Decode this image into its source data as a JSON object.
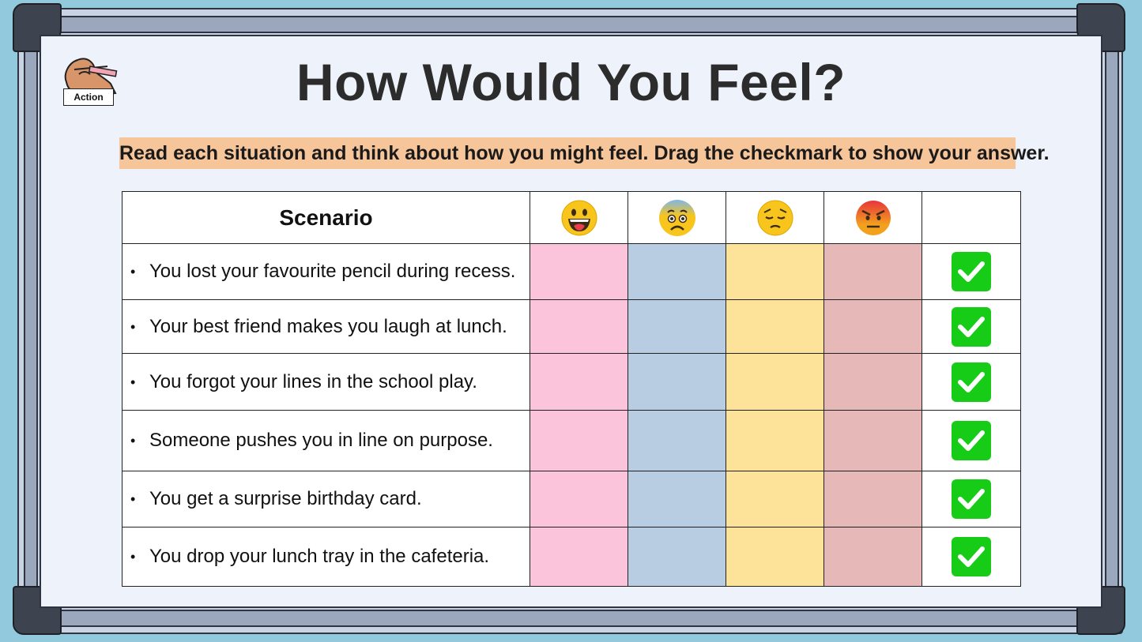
{
  "page": {
    "title": "How Would You Feel?",
    "instruction": "Read each situation and think about how you might feel. Drag the checkmark to show your answer.",
    "action_label": "Action"
  },
  "table": {
    "header": {
      "scenario": "Scenario",
      "emotions": [
        "happy-face-icon",
        "anxious-face-icon",
        "sad-face-icon",
        "angry-face-icon"
      ]
    },
    "rows": [
      {
        "scenario": "You lost your favourite pencil during recess."
      },
      {
        "scenario": "Your best friend makes you laugh at lunch."
      },
      {
        "scenario": "You forgot your lines in the school play."
      },
      {
        "scenario": "Someone pushes you in line on purpose."
      },
      {
        "scenario": "You get a surprise birthday card."
      },
      {
        "scenario": "You drop your lunch tray in the cafeteria."
      }
    ],
    "column_colors": [
      "#fcc4da",
      "#b8cce2",
      "#fde29a",
      "#e6b8b7"
    ],
    "checkmark_color": "#16cc16"
  }
}
